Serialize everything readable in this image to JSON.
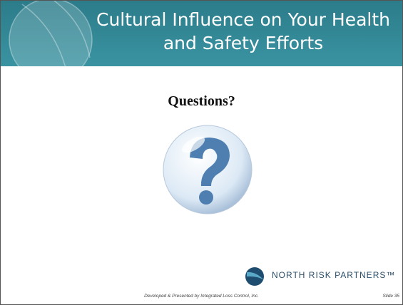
{
  "header": {
    "title_lines": [
      "Cultural Influence on Your Health",
      "and Safety Efforts"
    ]
  },
  "body": {
    "heading": "Questions?"
  },
  "logo": {
    "text": "NORTH RISK PARTNERS™"
  },
  "footer": {
    "credit": "Developed & Presented by Integrated Loss Control, Inc.",
    "slide": "Slide 35"
  }
}
